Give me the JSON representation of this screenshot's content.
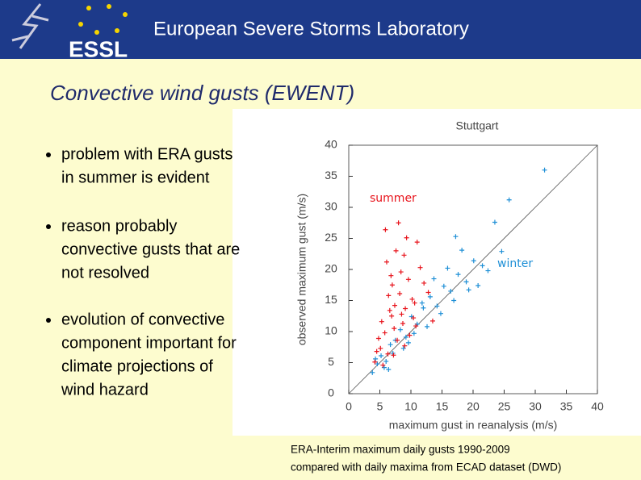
{
  "header": {
    "logo": "ESSL",
    "title": "European Severe Storms Laboratory"
  },
  "slide_title": "Convective wind gusts (EWENT)",
  "bullets": [
    [
      "problem with ERA gusts",
      "in summer is evident"
    ],
    [
      "reason probably",
      "convective gusts that are",
      "not resolved"
    ],
    [
      "evolution of convective",
      "component important for",
      "climate projections of",
      "wind hazard"
    ]
  ],
  "chart_data": {
    "type": "scatter",
    "title": "Stuttgart",
    "xlabel": "maximum gust in reanalysis (m/s)",
    "ylabel": "observed maximum gust (m/s)",
    "xlim": [
      0,
      40
    ],
    "ylim": [
      0,
      40
    ],
    "xticks": [
      0,
      5,
      10,
      15,
      20,
      25,
      30,
      35,
      40
    ],
    "yticks": [
      0,
      5,
      10,
      15,
      20,
      25,
      30,
      35,
      40
    ],
    "annotations": [
      {
        "text": "summer",
        "color": "#e8141c"
      },
      {
        "text": "winter",
        "color": "#1e8fd6"
      }
    ],
    "series": [
      {
        "name": "winter",
        "color": "#1e8fd6",
        "x": [
          3.8,
          4.6,
          5.2,
          6.0,
          6.7,
          7.5,
          8.3,
          9.2,
          10.1,
          11.0,
          12.0,
          13.1,
          14.2,
          15.3,
          16.4,
          17.6,
          18.9,
          20.1,
          21.5,
          5.7,
          7.1,
          8.8,
          10.5,
          12.6,
          14.8,
          16.9,
          19.3,
          22.4,
          24.6,
          4.3,
          6.4,
          9.6,
          11.8,
          13.7,
          15.9,
          18.2,
          23.5,
          25.8,
          20.8,
          17.2,
          31.5
        ],
        "values": [
          3.4,
          4.8,
          6.1,
          5.2,
          7.9,
          8.6,
          10.3,
          9.1,
          12.4,
          11.2,
          13.8,
          15.6,
          14.1,
          17.3,
          16.5,
          19.2,
          18.0,
          21.4,
          20.6,
          4.2,
          6.5,
          7.3,
          9.7,
          10.8,
          12.9,
          15.0,
          16.7,
          19.8,
          22.9,
          5.6,
          3.9,
          8.2,
          14.6,
          18.5,
          20.2,
          23.1,
          27.6,
          31.2,
          17.4,
          25.3,
          36.0
        ]
      },
      {
        "name": "summer",
        "color": "#e8141c",
        "x": [
          4.2,
          5.1,
          5.8,
          6.3,
          6.9,
          7.4,
          7.8,
          8.2,
          8.7,
          9.1,
          9.6,
          10.2,
          10.8,
          11.5,
          5.5,
          6.1,
          7.0,
          7.6,
          8.4,
          9.3,
          4.8,
          6.6,
          8.9,
          10.4,
          12.1,
          5.3,
          7.2,
          9.8,
          6.4,
          11.0,
          4.5,
          8.0,
          7.3,
          9.0,
          6.8,
          5.9,
          10.6,
          8.5,
          12.8,
          13.5
        ],
        "values": [
          5.1,
          7.3,
          9.8,
          6.4,
          12.5,
          14.2,
          8.6,
          16.1,
          11.3,
          13.7,
          18.4,
          15.2,
          10.9,
          20.3,
          4.6,
          21.2,
          17.5,
          23.0,
          19.6,
          25.1,
          8.9,
          13.4,
          22.3,
          12.2,
          17.8,
          11.6,
          6.2,
          9.4,
          15.8,
          24.4,
          6.8,
          27.5,
          10.5,
          7.7,
          19.0,
          26.4,
          14.6,
          12.8,
          16.3,
          11.7
        ]
      }
    ]
  },
  "caption": [
    "ERA-Interim maximum daily gusts 1990-2009",
    "compared with daily maxima from ECAD dataset (DWD)"
  ]
}
